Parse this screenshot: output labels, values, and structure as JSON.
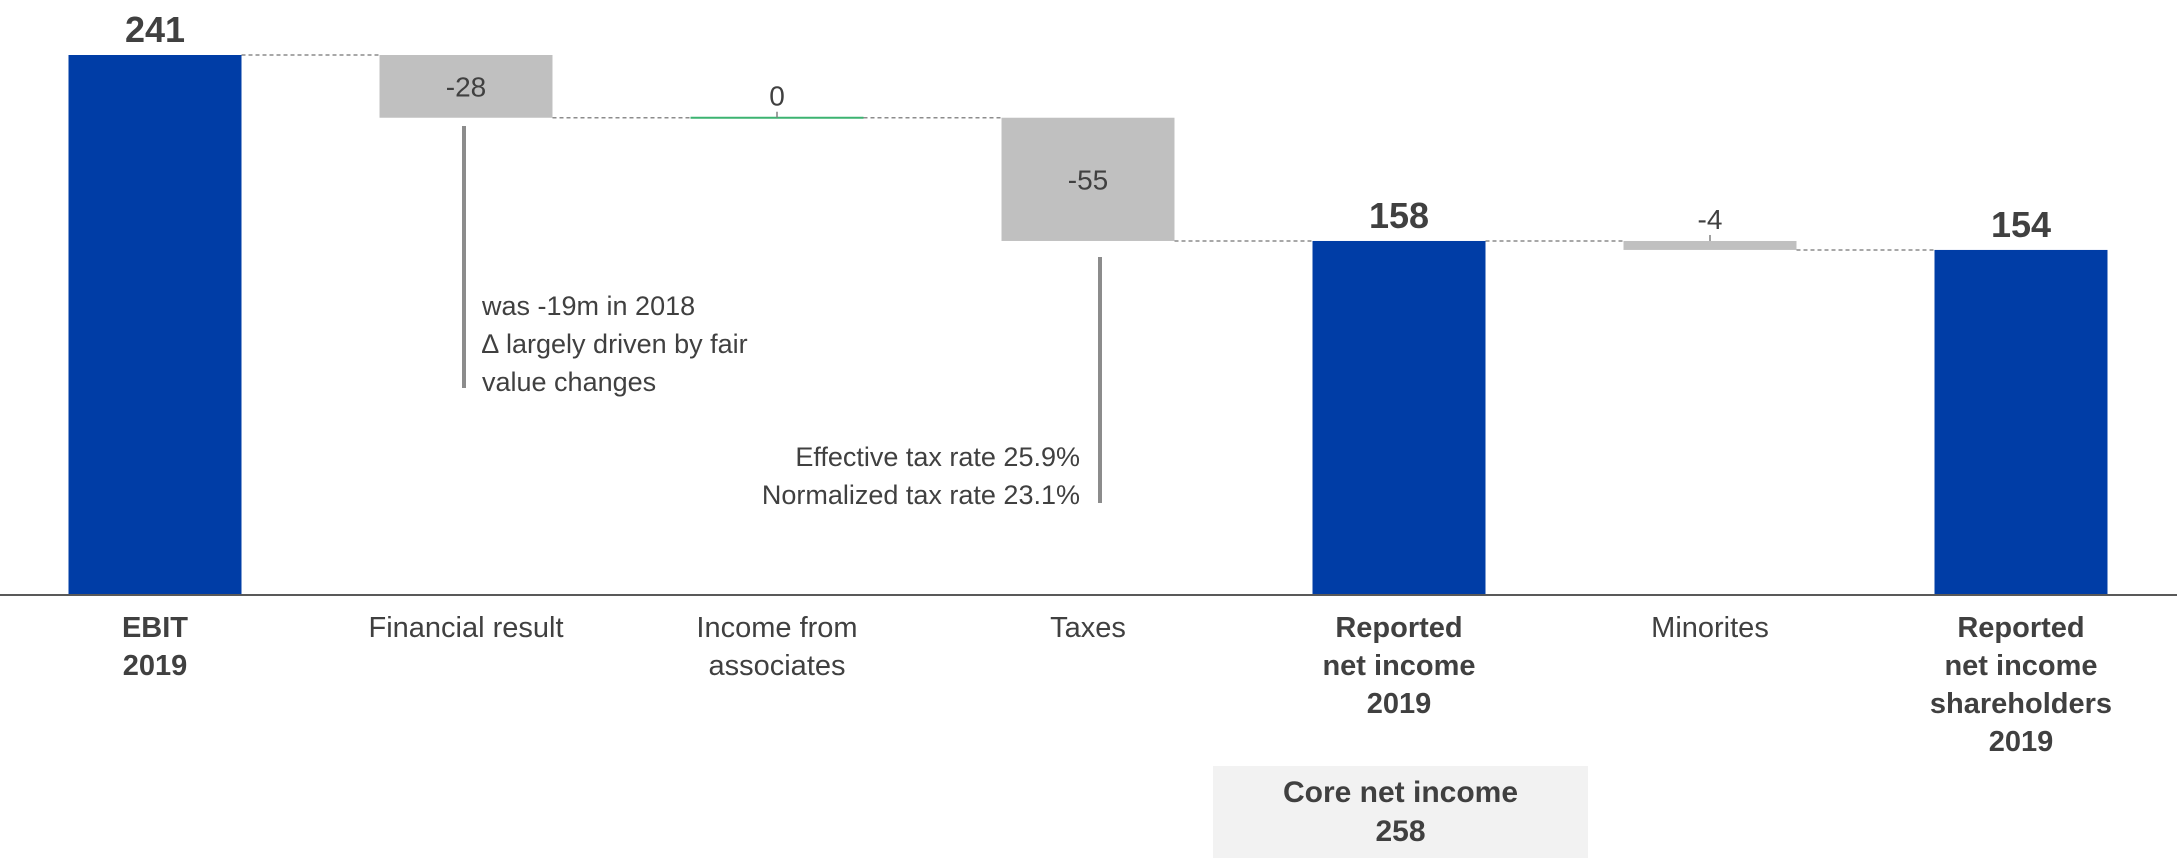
{
  "chart_data": {
    "type": "waterfall",
    "categories": [
      {
        "label_lines": [
          "EBIT",
          "2019"
        ],
        "bold": true
      },
      {
        "label_lines": [
          "Financial result"
        ],
        "bold": false
      },
      {
        "label_lines": [
          "Income from",
          "associates"
        ],
        "bold": false
      },
      {
        "label_lines": [
          "Taxes"
        ],
        "bold": false
      },
      {
        "label_lines": [
          "Reported",
          "net income",
          "2019"
        ],
        "bold": true
      },
      {
        "label_lines": [
          "Minorites"
        ],
        "bold": false
      },
      {
        "label_lines": [
          "Reported",
          "net income",
          "shareholders",
          "2019"
        ],
        "bold": true
      }
    ],
    "steps": [
      {
        "kind": "total",
        "value": 241,
        "label": "241"
      },
      {
        "kind": "delta",
        "value": -28,
        "label": "-28"
      },
      {
        "kind": "delta",
        "value": 0,
        "label": "0"
      },
      {
        "kind": "delta",
        "value": -55,
        "label": "-55"
      },
      {
        "kind": "total",
        "value": 158,
        "label": "158"
      },
      {
        "kind": "delta",
        "value": -4,
        "label": "-4"
      },
      {
        "kind": "total",
        "value": 154,
        "label": "154"
      }
    ],
    "colors": {
      "total": "#003da6",
      "delta": "#c0c0c0",
      "zero": "#3cb371",
      "connector": "#8c8c8c",
      "axis": "#595959",
      "annotation_line": "#8c8c8c"
    },
    "ylim": [
      0,
      241
    ]
  },
  "annotations": {
    "financial_result": {
      "lines": [
        "was -19m in 2018",
        "∆ largely driven by fair",
        "value changes"
      ]
    },
    "taxes": {
      "lines": [
        "Effective tax rate 25.9%",
        "Normalized tax rate 23.1%"
      ]
    }
  },
  "core_net_income": {
    "title": "Core net income",
    "value": "258"
  }
}
